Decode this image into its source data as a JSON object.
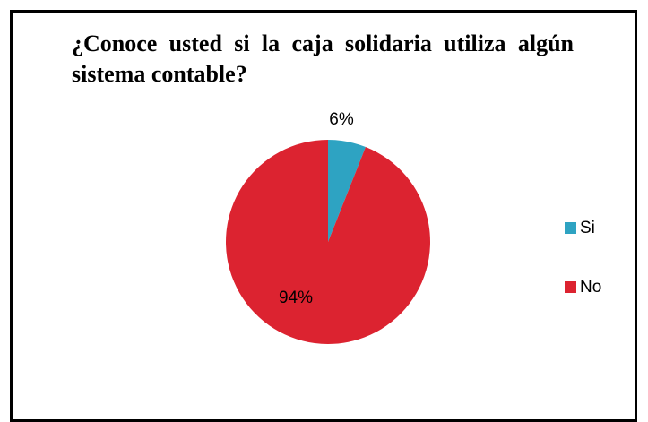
{
  "chart_data": {
    "type": "pie",
    "title": "¿Conoce usted si la caja solidaria utiliza algún sistema contable?",
    "categories": [
      "Si",
      "No"
    ],
    "values": [
      6,
      94
    ],
    "data_labels": [
      "6%",
      "94%"
    ],
    "colors": [
      "#2ea3c2",
      "#dc2330"
    ],
    "legend": {
      "placement": "right",
      "entries": [
        "Si",
        "No"
      ]
    }
  }
}
